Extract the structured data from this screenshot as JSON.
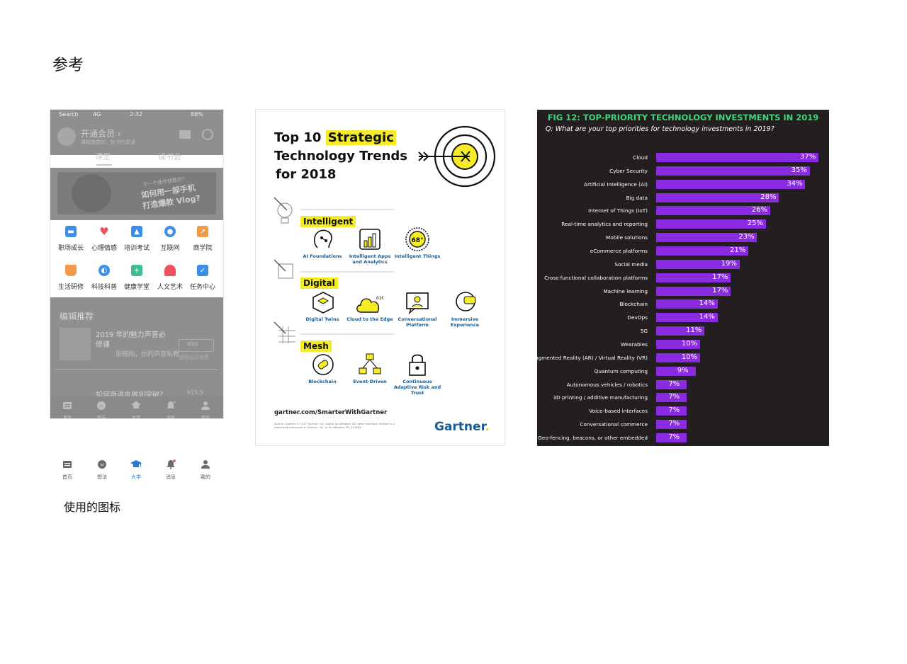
{
  "headings": {
    "reference": "参考",
    "used_icons": "使用的图标"
  },
  "phone": {
    "status": {
      "carrier": "Search",
      "signal": "4G",
      "time": "2:32",
      "battery": "88%"
    },
    "member_title": "开通会员 ›",
    "member_sub": "课程随意听，好书任意读",
    "tabs": [
      "课堂",
      "读书会"
    ],
    "banner": {
      "small": "下一个佳作就是你？",
      "line1": "如何用一部手机",
      "line2": "打造爆款 Vlog?"
    },
    "grid": [
      {
        "label": "职场成长",
        "icon": "briefcase-icon",
        "color": "#3d8ee6"
      },
      {
        "label": "心理情感",
        "icon": "heart-icon",
        "color": "#f0515f"
      },
      {
        "label": "培训考试",
        "icon": "graduation-cap-icon",
        "color": "#3d8ee6"
      },
      {
        "label": "互联网",
        "icon": "mouse-icon",
        "color": "#3d8ee6"
      },
      {
        "label": "商学院",
        "icon": "trend-chart-icon",
        "color": "#f2994a"
      },
      {
        "label": "生活研修",
        "icon": "cup-icon",
        "color": "#f2994a"
      },
      {
        "label": "科技科普",
        "icon": "planet-icon",
        "color": "#3d8ee6"
      },
      {
        "label": "健康学堂",
        "icon": "medical-kit-icon",
        "color": "#3fbf8f"
      },
      {
        "label": "人文艺术",
        "icon": "fan-icon",
        "color": "#f0515f"
      },
      {
        "label": "任务中心",
        "icon": "checkbox-icon",
        "color": "#3d8ee6"
      }
    ],
    "recommend": {
      "title": "编辑推荐",
      "item_title_1": "2019 年的魅力声音必",
      "item_title_2": "修课",
      "author": "张皓翔，你的声音私教",
      "price": "¥99",
      "note": "超级会员免费",
      "item2_title": "如何用语言做到突破？",
      "item2_price": "¥19.9"
    },
    "tabbar": [
      {
        "label": "首页",
        "icon": "home-icon"
      },
      {
        "label": "想法",
        "icon": "idea-icon"
      },
      {
        "label": "大学",
        "icon": "university-icon"
      },
      {
        "label": "消息",
        "icon": "bell-icon"
      },
      {
        "label": "我的",
        "icon": "profile-icon"
      }
    ]
  },
  "icon_row": [
    {
      "label": "首页",
      "icon": "home-icon",
      "active": false
    },
    {
      "label": "想法",
      "icon": "idea-icon",
      "active": false
    },
    {
      "label": "大学",
      "icon": "university-icon",
      "active": true
    },
    {
      "label": "消息",
      "icon": "bell-icon",
      "active": false
    },
    {
      "label": "我的",
      "icon": "profile-icon",
      "active": false
    }
  ],
  "gartner": {
    "title_prefix": "Top 10 ",
    "title_highlight": "Strategic",
    "title_line2": "Technology Trends",
    "title_line3": "for 2018",
    "sections": [
      {
        "name": "Intelligent",
        "items": [
          "AI Foundations",
          "Intelligent Apps and Analytics",
          "Intelligent Things"
        ]
      },
      {
        "name": "Digital",
        "items": [
          "Digital Twins",
          "Cloud to the Edge",
          "Conversational Platform",
          "Immersive Experience"
        ]
      },
      {
        "name": "Mesh",
        "items": [
          "Blockchain",
          "Event-Driven",
          "Continuous Adaptive Risk and Trust"
        ]
      }
    ],
    "url": "gartner.com/SmarterWithGartner",
    "source": "Source: Gartner © 2017 Gartner, Inc. and/or its affiliates. All rights reserved. Gartner is a registered trademark of Gartner, Inc. or its affiliates. PR_313564",
    "logo": "Gartner",
    "accent": "#f6eb28",
    "brand": "#1a5b92"
  },
  "chart_data": {
    "type": "bar",
    "orientation": "horizontal",
    "title": "FIG 12: TOP-PRIORITY TECHNOLOGY INVESTMENTS IN 2019",
    "subtitle": "Q: What are your top priorities for technology investments in 2019?",
    "categories": [
      "Cloud",
      "Cyber Security",
      "Artificial Intelligence (AI)",
      "Big data",
      "Internet of Things (IoT)",
      "Real-time analytics and reporting",
      "Mobile solutions",
      "eCommerce platforms",
      "Social media",
      "Cross-functional collaboration platforms",
      "Machine learning",
      "Blockchain",
      "DevOps",
      "5G",
      "Wearables",
      "Augmented Reality (AR) / Virtual Reality (VR)",
      "Quantum computing",
      "Autonomous vehicles / robotics",
      "3D printing / additive manufacturing",
      "Voice-based interfaces",
      "Conversational commerce",
      "Geo-fencing, beacons, or other embedded"
    ],
    "values": [
      37,
      35,
      34,
      28,
      26,
      25,
      23,
      21,
      19,
      17,
      17,
      14,
      14,
      11,
      10,
      10,
      9,
      7,
      7,
      7,
      7,
      7
    ],
    "value_suffix": "%",
    "xlim": [
      0,
      37
    ],
    "grid": false,
    "bar_color": "#8a2be2",
    "title_color": "#3fd67b",
    "background": "#231f20"
  }
}
